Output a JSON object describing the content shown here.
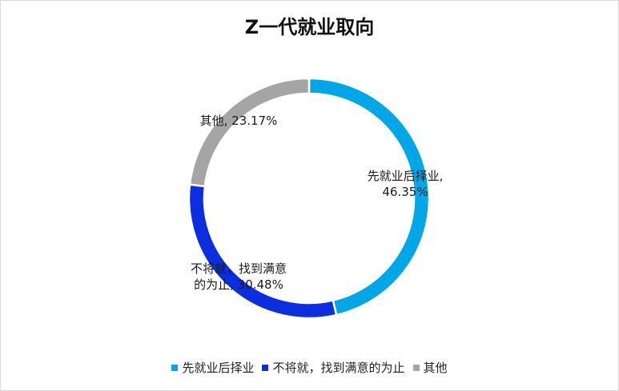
{
  "chart_data": {
    "type": "pie",
    "title": "Z一代就业取向",
    "style": "donut",
    "legend_position": "bottom",
    "slices": [
      {
        "name": "先就业后择业",
        "value": 46.35,
        "color": "#00a7e6",
        "label_lines": [
          "先就业后择业,",
          "46.35%"
        ]
      },
      {
        "name": "不将就，找到满意的为止",
        "value": 30.48,
        "color": "#0a2ee0",
        "label_lines": [
          "不将就，找到满意",
          "的为止, 30.48%"
        ]
      },
      {
        "name": "其他",
        "value": 23.17,
        "color": "#a5a5a5",
        "label_lines": [
          "其他, 23.17%"
        ]
      }
    ]
  }
}
